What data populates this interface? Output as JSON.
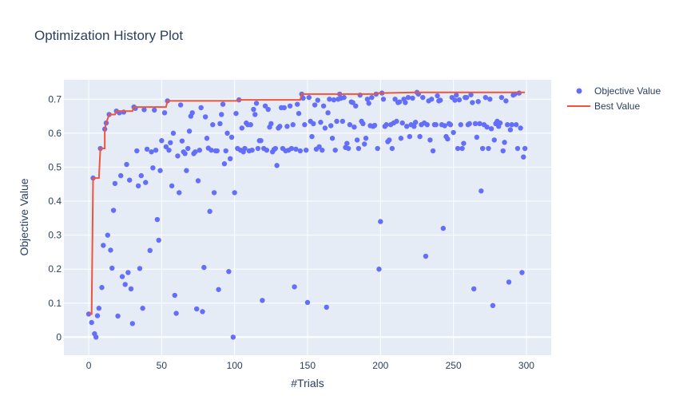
{
  "chart_data": {
    "type": "scatter",
    "title": "Optimization History Plot",
    "xlabel": "#Trials",
    "ylabel": "Objective Value",
    "xlim": [
      -17,
      317
    ],
    "ylim": [
      -0.053,
      0.757
    ],
    "xticks": [
      0,
      50,
      100,
      150,
      200,
      250,
      300
    ],
    "yticks": [
      0,
      0.1,
      0.2,
      0.3,
      0.4,
      0.5,
      0.6,
      0.7
    ],
    "grid": true,
    "legend_position": "top-right",
    "colors": {
      "plot_bg": "#e5ecf6",
      "points": "#636efa",
      "line": "#ef553b",
      "text": "#2a3f5f"
    },
    "series": [
      {
        "name": "Objective Value",
        "kind": "markers",
        "points": [
          [
            0,
            0.068
          ],
          [
            2,
            0.043
          ],
          [
            3,
            0.468
          ],
          [
            4,
            0.01
          ],
          [
            5,
            0.0
          ],
          [
            6,
            0.063
          ],
          [
            7,
            0.085
          ],
          [
            8,
            0.555
          ],
          [
            9,
            0.146
          ],
          [
            10,
            0.27
          ],
          [
            11,
            0.612
          ],
          [
            12,
            0.63
          ],
          [
            13,
            0.3
          ],
          [
            14,
            0.655
          ],
          [
            15,
            0.256
          ],
          [
            16,
            0.203
          ],
          [
            17,
            0.373
          ],
          [
            18,
            0.452
          ],
          [
            19,
            0.665
          ],
          [
            20,
            0.062
          ],
          [
            21,
            0.66
          ],
          [
            22,
            0.475
          ],
          [
            23,
            0.178
          ],
          [
            24,
            0.662
          ],
          [
            25,
            0.155
          ],
          [
            26,
            0.508
          ],
          [
            27,
            0.19
          ],
          [
            28,
            0.462
          ],
          [
            29,
            0.142
          ],
          [
            30,
            0.04
          ],
          [
            31,
            0.677
          ],
          [
            32,
            0.673
          ],
          [
            33,
            0.548
          ],
          [
            34,
            0.445
          ],
          [
            35,
            0.202
          ],
          [
            36,
            0.475
          ],
          [
            37,
            0.085
          ],
          [
            38,
            0.669
          ],
          [
            39,
            0.455
          ],
          [
            40,
            0.553
          ],
          [
            42,
            0.255
          ],
          [
            43,
            0.545
          ],
          [
            44,
            0.498
          ],
          [
            45,
            0.668
          ],
          [
            46,
            0.55
          ],
          [
            47,
            0.346
          ],
          [
            48,
            0.285
          ],
          [
            49,
            0.49
          ],
          [
            50,
            0.578
          ],
          [
            52,
            0.66
          ],
          [
            53,
            0.56
          ],
          [
            54,
            0.695
          ],
          [
            55,
            0.55
          ],
          [
            56,
            0.572
          ],
          [
            57,
            0.445
          ],
          [
            58,
            0.6
          ],
          [
            59,
            0.123
          ],
          [
            60,
            0.07
          ],
          [
            61,
            0.533
          ],
          [
            62,
            0.425
          ],
          [
            63,
            0.683
          ],
          [
            64,
            0.577
          ],
          [
            65,
            0.545
          ],
          [
            66,
            0.54
          ],
          [
            67,
            0.49
          ],
          [
            68,
            0.555
          ],
          [
            69,
            0.606
          ],
          [
            70,
            0.65
          ],
          [
            71,
            0.66
          ],
          [
            72,
            0.54
          ],
          [
            73,
            0.545
          ],
          [
            74,
            0.083
          ],
          [
            75,
            0.46
          ],
          [
            76,
            0.55
          ],
          [
            77,
            0.675
          ],
          [
            78,
            0.075
          ],
          [
            79,
            0.205
          ],
          [
            80,
            0.648
          ],
          [
            81,
            0.585
          ],
          [
            82,
            0.556
          ],
          [
            83,
            0.37
          ],
          [
            84,
            0.55
          ],
          [
            85,
            0.625
          ],
          [
            86,
            0.425
          ],
          [
            87,
            0.548
          ],
          [
            88,
            0.548
          ],
          [
            89,
            0.14
          ],
          [
            90,
            0.628
          ],
          [
            91,
            0.655
          ],
          [
            92,
            0.685
          ],
          [
            93,
            0.51
          ],
          [
            94,
            0.548
          ],
          [
            95,
            0.6
          ],
          [
            96,
            0.193
          ],
          [
            97,
            0.525
          ],
          [
            98,
            0.588
          ],
          [
            99,
            0.0
          ],
          [
            100,
            0.425
          ],
          [
            101,
            0.658
          ],
          [
            102,
            0.555
          ],
          [
            103,
            0.698
          ],
          [
            104,
            0.55
          ],
          [
            105,
            0.615
          ],
          [
            106,
            0.545
          ],
          [
            107,
            0.555
          ],
          [
            108,
            0.63
          ],
          [
            109,
            0.625
          ],
          [
            110,
            0.548
          ],
          [
            111,
            0.625
          ],
          [
            112,
            0.55
          ],
          [
            113,
            0.67
          ],
          [
            114,
            0.655
          ],
          [
            115,
            0.688
          ],
          [
            116,
            0.555
          ],
          [
            117,
            0.578
          ],
          [
            118,
            0.578
          ],
          [
            119,
            0.108
          ],
          [
            120,
            0.555
          ],
          [
            121,
            0.68
          ],
          [
            122,
            0.55
          ],
          [
            123,
            0.67
          ],
          [
            124,
            0.618
          ],
          [
            125,
            0.628
          ],
          [
            126,
            0.545
          ],
          [
            127,
            0.552
          ],
          [
            128,
            0.555
          ],
          [
            129,
            0.505
          ],
          [
            130,
            0.615
          ],
          [
            131,
            0.62
          ],
          [
            132,
            0.675
          ],
          [
            133,
            0.555
          ],
          [
            134,
            0.675
          ],
          [
            135,
            0.548
          ],
          [
            136,
            0.62
          ],
          [
            137,
            0.55
          ],
          [
            138,
            0.68
          ],
          [
            139,
            0.555
          ],
          [
            140,
            0.625
          ],
          [
            141,
            0.148
          ],
          [
            142,
            0.553
          ],
          [
            143,
            0.685
          ],
          [
            144,
            0.658
          ],
          [
            145,
            0.548
          ],
          [
            146,
            0.715
          ],
          [
            147,
            0.703
          ],
          [
            148,
            0.625
          ],
          [
            149,
            0.55
          ],
          [
            150,
            0.102
          ],
          [
            151,
            0.705
          ],
          [
            152,
            0.635
          ],
          [
            153,
            0.59
          ],
          [
            154,
            0.628
          ],
          [
            155,
            0.683
          ],
          [
            156,
            0.553
          ],
          [
            157,
            0.697
          ],
          [
            158,
            0.56
          ],
          [
            159,
            0.632
          ],
          [
            160,
            0.55
          ],
          [
            161,
            0.68
          ],
          [
            162,
            0.615
          ],
          [
            163,
            0.088
          ],
          [
            164,
            0.66
          ],
          [
            165,
            0.7
          ],
          [
            166,
            0.622
          ],
          [
            167,
            0.585
          ],
          [
            168,
            0.698
          ],
          [
            169,
            0.55
          ],
          [
            170,
            0.635
          ],
          [
            171,
            0.7
          ],
          [
            172,
            0.715
          ],
          [
            173,
            0.703
          ],
          [
            174,
            0.635
          ],
          [
            175,
            0.705
          ],
          [
            176,
            0.558
          ],
          [
            177,
            0.57
          ],
          [
            178,
            0.555
          ],
          [
            179,
            0.625
          ],
          [
            180,
            0.692
          ],
          [
            181,
            0.69
          ],
          [
            182,
            0.618
          ],
          [
            183,
            0.68
          ],
          [
            184,
            0.58
          ],
          [
            185,
            0.555
          ],
          [
            186,
            0.712
          ],
          [
            187,
            0.635
          ],
          [
            188,
            0.628
          ],
          [
            189,
            0.568
          ],
          [
            190,
            0.585
          ],
          [
            191,
            0.7
          ],
          [
            192,
            0.688
          ],
          [
            193,
            0.622
          ],
          [
            194,
            0.705
          ],
          [
            195,
            0.62
          ],
          [
            196,
            0.623
          ],
          [
            197,
            0.715
          ],
          [
            198,
            0.555
          ],
          [
            199,
            0.2
          ],
          [
            200,
            0.34
          ],
          [
            201,
            0.718
          ],
          [
            202,
            0.7
          ],
          [
            203,
            0.62
          ],
          [
            204,
            0.625
          ],
          [
            205,
            0.575
          ],
          [
            206,
            0.58
          ],
          [
            207,
            0.625
          ],
          [
            208,
            0.555
          ],
          [
            209,
            0.63
          ],
          [
            210,
            0.7
          ],
          [
            211,
            0.635
          ],
          [
            212,
            0.69
          ],
          [
            213,
            0.692
          ],
          [
            214,
            0.585
          ],
          [
            215,
            0.63
          ],
          [
            216,
            0.7
          ],
          [
            217,
            0.69
          ],
          [
            218,
            0.62
          ],
          [
            219,
            0.705
          ],
          [
            220,
            0.59
          ],
          [
            221,
            0.625
          ],
          [
            222,
            0.703
          ],
          [
            223,
            0.62
          ],
          [
            224,
            0.632
          ],
          [
            225,
            0.72
          ],
          [
            226,
            0.715
          ],
          [
            227,
            0.59
          ],
          [
            228,
            0.625
          ],
          [
            229,
            0.705
          ],
          [
            230,
            0.63
          ],
          [
            231,
            0.238
          ],
          [
            232,
            0.625
          ],
          [
            233,
            0.695
          ],
          [
            234,
            0.58
          ],
          [
            235,
            0.7
          ],
          [
            236,
            0.548
          ],
          [
            237,
            0.625
          ],
          [
            238,
            0.625
          ],
          [
            239,
            0.71
          ],
          [
            240,
            0.695
          ],
          [
            241,
            0.697
          ],
          [
            242,
            0.625
          ],
          [
            243,
            0.32
          ],
          [
            244,
            0.622
          ],
          [
            245,
            0.59
          ],
          [
            246,
            0.583
          ],
          [
            247,
            0.628
          ],
          [
            248,
            0.625
          ],
          [
            249,
            0.705
          ],
          [
            250,
            0.602
          ],
          [
            251,
            0.697
          ],
          [
            252,
            0.712
          ],
          [
            253,
            0.555
          ],
          [
            254,
            0.698
          ],
          [
            255,
            0.625
          ],
          [
            256,
            0.555
          ],
          [
            257,
            0.57
          ],
          [
            258,
            0.705
          ],
          [
            259,
            0.705
          ],
          [
            260,
            0.625
          ],
          [
            261,
            0.628
          ],
          [
            262,
            0.713
          ],
          [
            263,
            0.69
          ],
          [
            264,
            0.142
          ],
          [
            265,
            0.628
          ],
          [
            266,
            0.588
          ],
          [
            267,
            0.693
          ],
          [
            268,
            0.628
          ],
          [
            269,
            0.43
          ],
          [
            270,
            0.555
          ],
          [
            271,
            0.625
          ],
          [
            272,
            0.705
          ],
          [
            273,
            0.618
          ],
          [
            274,
            0.555
          ],
          [
            275,
            0.7
          ],
          [
            276,
            0.613
          ],
          [
            277,
            0.093
          ],
          [
            278,
            0.58
          ],
          [
            279,
            0.628
          ],
          [
            280,
            0.635
          ],
          [
            281,
            0.62
          ],
          [
            282,
            0.63
          ],
          [
            283,
            0.705
          ],
          [
            284,
            0.548
          ],
          [
            285,
            0.573
          ],
          [
            286,
            0.695
          ],
          [
            287,
            0.625
          ],
          [
            288,
            0.162
          ],
          [
            289,
            0.61
          ],
          [
            290,
            0.625
          ],
          [
            291,
            0.712
          ],
          [
            292,
            0.715
          ],
          [
            293,
            0.625
          ],
          [
            294,
            0.555
          ],
          [
            295,
            0.718
          ],
          [
            296,
            0.615
          ],
          [
            297,
            0.19
          ],
          [
            298,
            0.53
          ],
          [
            299,
            0.555
          ]
        ]
      },
      {
        "name": "Best Value",
        "kind": "step-line",
        "points": [
          [
            0,
            0.068
          ],
          [
            1,
            0.068
          ],
          [
            2,
            0.068
          ],
          [
            3,
            0.468
          ],
          [
            7,
            0.468
          ],
          [
            8,
            0.555
          ],
          [
            11,
            0.555
          ],
          [
            11,
            0.612
          ],
          [
            12,
            0.63
          ],
          [
            14,
            0.655
          ],
          [
            18,
            0.655
          ],
          [
            19,
            0.665
          ],
          [
            30,
            0.665
          ],
          [
            31,
            0.677
          ],
          [
            53,
            0.677
          ],
          [
            54,
            0.695
          ],
          [
            102,
            0.695
          ],
          [
            103,
            0.698
          ],
          [
            145,
            0.698
          ],
          [
            146,
            0.715
          ],
          [
            197,
            0.715
          ],
          [
            198,
            0.718
          ],
          [
            200,
            0.718
          ],
          [
            225,
            0.72
          ],
          [
            299,
            0.72
          ]
        ]
      }
    ]
  }
}
